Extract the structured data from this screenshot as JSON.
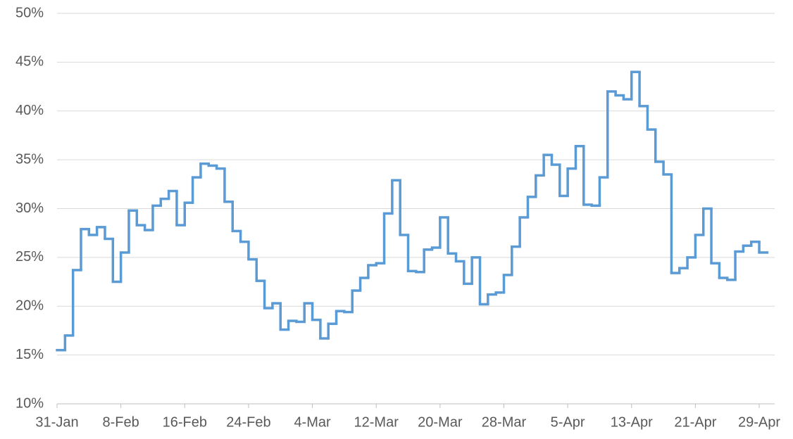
{
  "chart_data": {
    "type": "step",
    "categories": [
      "31-Jan",
      null,
      null,
      null,
      null,
      null,
      null,
      null,
      "8-Feb",
      null,
      null,
      null,
      null,
      null,
      null,
      null,
      "16-Feb",
      null,
      null,
      null,
      null,
      null,
      null,
      null,
      "24-Feb",
      null,
      null,
      null,
      null,
      null,
      null,
      null,
      "4-Mar",
      null,
      null,
      null,
      null,
      null,
      null,
      null,
      "12-Mar",
      null,
      null,
      null,
      null,
      null,
      null,
      null,
      "20-Mar",
      null,
      null,
      null,
      null,
      null,
      null,
      null,
      "28-Mar",
      null,
      null,
      null,
      null,
      null,
      null,
      null,
      "5-Apr",
      null,
      null,
      null,
      null,
      null,
      null,
      null,
      "13-Apr",
      null,
      null,
      null,
      null,
      null,
      null,
      null,
      "21-Apr",
      null,
      null,
      null,
      null,
      null,
      null,
      null,
      "29-Apr"
    ],
    "values": [
      15.5,
      17.0,
      23.7,
      27.9,
      27.3,
      28.1,
      26.9,
      22.5,
      25.5,
      29.8,
      28.3,
      27.8,
      30.3,
      31.0,
      31.8,
      28.3,
      30.6,
      33.2,
      34.6,
      34.4,
      34.1,
      30.7,
      27.7,
      26.6,
      24.8,
      22.6,
      19.8,
      20.3,
      17.6,
      18.5,
      18.4,
      20.3,
      18.6,
      16.7,
      18.2,
      19.5,
      19.4,
      21.6,
      22.9,
      24.2,
      24.4,
      29.5,
      32.9,
      27.3,
      23.6,
      23.5,
      25.8,
      26.0,
      29.1,
      25.4,
      24.6,
      22.3,
      25.0,
      20.2,
      21.2,
      21.4,
      23.2,
      26.1,
      29.1,
      31.2,
      33.4,
      35.5,
      34.5,
      31.3,
      34.1,
      36.4,
      30.4,
      30.3,
      33.2,
      42.0,
      41.6,
      41.2,
      44.0,
      40.5,
      38.1,
      34.8,
      33.5,
      23.4,
      23.9,
      25.0,
      27.3,
      30.0,
      24.4,
      22.9,
      22.7,
      25.6,
      26.2,
      26.6,
      25.5
    ],
    "color": "#5b9bd5",
    "ylim": [
      10,
      50
    ],
    "yticks": [
      {
        "value": 10,
        "label": "10%"
      },
      {
        "value": 15,
        "label": "15%"
      },
      {
        "value": 20,
        "label": "20%"
      },
      {
        "value": 25,
        "label": "25%"
      },
      {
        "value": 30,
        "label": "30%"
      },
      {
        "value": 35,
        "label": "35%"
      },
      {
        "value": 40,
        "label": "40%"
      },
      {
        "value": 45,
        "label": "45%"
      },
      {
        "value": 50,
        "label": "50%"
      }
    ],
    "grid": true
  }
}
